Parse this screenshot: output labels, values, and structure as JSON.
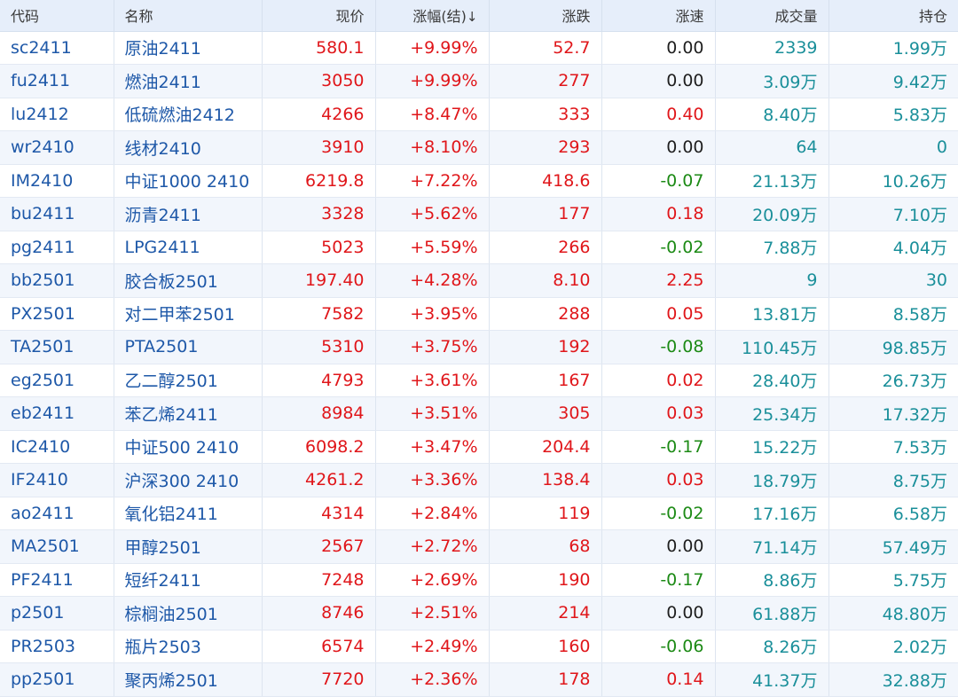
{
  "columns": {
    "code": "代码",
    "name": "名称",
    "price": "现价",
    "change_pct": "涨幅(结)",
    "change_pct_sort": "↓",
    "change": "涨跌",
    "speed": "涨速",
    "volume": "成交量",
    "open_interest": "持仓"
  },
  "colors": {
    "up": "#e0161a",
    "down": "#1c8a15",
    "flat": "#1f1f1f",
    "link": "#1e58a8",
    "teal": "#1a8f9a",
    "header_bg": "#e6eefa"
  },
  "rows": [
    {
      "code": "sc2411",
      "name": "原油2411",
      "price": "580.1",
      "change_pct": "+9.99%",
      "change": "52.7",
      "speed": "0.00",
      "volume": "2339",
      "open_interest": "1.99万"
    },
    {
      "code": "fu2411",
      "name": "燃油2411",
      "price": "3050",
      "change_pct": "+9.99%",
      "change": "277",
      "speed": "0.00",
      "volume": "3.09万",
      "open_interest": "9.42万"
    },
    {
      "code": "lu2412",
      "name": "低硫燃油2412",
      "price": "4266",
      "change_pct": "+8.47%",
      "change": "333",
      "speed": "0.40",
      "volume": "8.40万",
      "open_interest": "5.83万"
    },
    {
      "code": "wr2410",
      "name": "线材2410",
      "price": "3910",
      "change_pct": "+8.10%",
      "change": "293",
      "speed": "0.00",
      "volume": "64",
      "open_interest": "0"
    },
    {
      "code": "IM2410",
      "name": "中证1000 2410",
      "price": "6219.8",
      "change_pct": "+7.22%",
      "change": "418.6",
      "speed": "-0.07",
      "volume": "21.13万",
      "open_interest": "10.26万"
    },
    {
      "code": "bu2411",
      "name": "沥青2411",
      "price": "3328",
      "change_pct": "+5.62%",
      "change": "177",
      "speed": "0.18",
      "volume": "20.09万",
      "open_interest": "7.10万"
    },
    {
      "code": "pg2411",
      "name": "LPG2411",
      "price": "5023",
      "change_pct": "+5.59%",
      "change": "266",
      "speed": "-0.02",
      "volume": "7.88万",
      "open_interest": "4.04万"
    },
    {
      "code": "bb2501",
      "name": "胶合板2501",
      "price": "197.40",
      "change_pct": "+4.28%",
      "change": "8.10",
      "speed": "2.25",
      "volume": "9",
      "open_interest": "30"
    },
    {
      "code": "PX2501",
      "name": "对二甲苯2501",
      "price": "7582",
      "change_pct": "+3.95%",
      "change": "288",
      "speed": "0.05",
      "volume": "13.81万",
      "open_interest": "8.58万"
    },
    {
      "code": "TA2501",
      "name": "PTA2501",
      "price": "5310",
      "change_pct": "+3.75%",
      "change": "192",
      "speed": "-0.08",
      "volume": "110.45万",
      "open_interest": "98.85万"
    },
    {
      "code": "eg2501",
      "name": "乙二醇2501",
      "price": "4793",
      "change_pct": "+3.61%",
      "change": "167",
      "speed": "0.02",
      "volume": "28.40万",
      "open_interest": "26.73万"
    },
    {
      "code": "eb2411",
      "name": "苯乙烯2411",
      "price": "8984",
      "change_pct": "+3.51%",
      "change": "305",
      "speed": "0.03",
      "volume": "25.34万",
      "open_interest": "17.32万"
    },
    {
      "code": "IC2410",
      "name": "中证500 2410",
      "price": "6098.2",
      "change_pct": "+3.47%",
      "change": "204.4",
      "speed": "-0.17",
      "volume": "15.22万",
      "open_interest": "7.53万"
    },
    {
      "code": "IF2410",
      "name": "沪深300 2410",
      "price": "4261.2",
      "change_pct": "+3.36%",
      "change": "138.4",
      "speed": "0.03",
      "volume": "18.79万",
      "open_interest": "8.75万"
    },
    {
      "code": "ao2411",
      "name": "氧化铝2411",
      "price": "4314",
      "change_pct": "+2.84%",
      "change": "119",
      "speed": "-0.02",
      "volume": "17.16万",
      "open_interest": "6.58万"
    },
    {
      "code": "MA2501",
      "name": "甲醇2501",
      "price": "2567",
      "change_pct": "+2.72%",
      "change": "68",
      "speed": "0.00",
      "volume": "71.14万",
      "open_interest": "57.49万"
    },
    {
      "code": "PF2411",
      "name": "短纤2411",
      "price": "7248",
      "change_pct": "+2.69%",
      "change": "190",
      "speed": "-0.17",
      "volume": "8.86万",
      "open_interest": "5.75万"
    },
    {
      "code": "p2501",
      "name": "棕榈油2501",
      "price": "8746",
      "change_pct": "+2.51%",
      "change": "214",
      "speed": "0.00",
      "volume": "61.88万",
      "open_interest": "48.80万"
    },
    {
      "code": "PR2503",
      "name": "瓶片2503",
      "price": "6574",
      "change_pct": "+2.49%",
      "change": "160",
      "speed": "-0.06",
      "volume": "8.26万",
      "open_interest": "2.02万"
    },
    {
      "code": "pp2501",
      "name": "聚丙烯2501",
      "price": "7720",
      "change_pct": "+2.36%",
      "change": "178",
      "speed": "0.14",
      "volume": "41.37万",
      "open_interest": "32.88万"
    }
  ]
}
